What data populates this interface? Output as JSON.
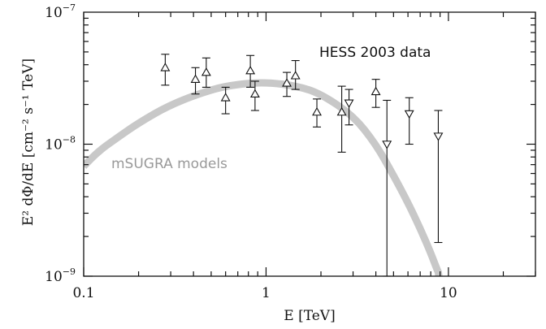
{
  "chart_data": {
    "type": "scatter",
    "xlabel": "E [TeV]",
    "ylabel": "E² dΦ/dE [cm⁻² s⁻¹ TeV]",
    "x_scale": "log",
    "y_scale": "log",
    "xlim": [
      0.1,
      30
    ],
    "ylim": [
      1e-09,
      1e-07
    ],
    "x_ticks": [
      {
        "value": 0.1,
        "label": "0.1"
      },
      {
        "value": 1,
        "label": "1"
      },
      {
        "value": 10,
        "label": "10"
      }
    ],
    "y_ticks": [
      {
        "value": 1e-09,
        "base": "10",
        "exp": "−9"
      },
      {
        "value": 1e-08,
        "base": "10",
        "exp": "−8"
      },
      {
        "value": 1e-07,
        "base": "10",
        "exp": "−7"
      }
    ],
    "annotations": [
      {
        "text": "HESS 2003 data",
        "style": "dark"
      },
      {
        "text": "mSUGRA models",
        "style": "grey"
      }
    ],
    "series": [
      {
        "kind": "points",
        "marker": "triangle-up",
        "points": [
          {
            "x": 0.28,
            "y": 3.8e-08,
            "lo": 2.8e-08,
            "hi": 4.8e-08
          },
          {
            "x": 0.41,
            "y": 3.1e-08,
            "lo": 2.4e-08,
            "hi": 3.8e-08
          },
          {
            "x": 0.47,
            "y": 3.5e-08,
            "lo": 2.7e-08,
            "hi": 4.5e-08
          },
          {
            "x": 0.6,
            "y": 2.25e-08,
            "lo": 1.7e-08,
            "hi": 2.7e-08
          },
          {
            "x": 0.82,
            "y": 3.6e-08,
            "lo": 2.7e-08,
            "hi": 4.7e-08
          },
          {
            "x": 0.87,
            "y": 2.4e-08,
            "lo": 1.8e-08,
            "hi": 3e-08
          },
          {
            "x": 1.3,
            "y": 2.9e-08,
            "lo": 2.3e-08,
            "hi": 3.5e-08
          },
          {
            "x": 1.45,
            "y": 3.3e-08,
            "lo": 2.6e-08,
            "hi": 4.3e-08
          },
          {
            "x": 1.9,
            "y": 1.75e-08,
            "lo": 1.35e-08,
            "hi": 2.2e-08
          },
          {
            "x": 2.6,
            "y": 1.75e-08,
            "lo": 8.7e-09,
            "hi": 2.75e-08
          },
          {
            "x": 4.0,
            "y": 2.5e-08,
            "lo": 1.9e-08,
            "hi": 3.1e-08
          }
        ]
      },
      {
        "kind": "points",
        "marker": "triangle-down",
        "points": [
          {
            "x": 2.85,
            "y": 2.05e-08,
            "lo": 1.4e-08,
            "hi": 2.6e-08
          },
          {
            "x": 4.6,
            "y": 1e-08,
            "lo": 1e-09,
            "hi": 2.15e-08
          },
          {
            "x": 6.1,
            "y": 1.7e-08,
            "lo": 1e-08,
            "hi": 2.25e-08
          },
          {
            "x": 8.8,
            "y": 1.15e-08,
            "lo": 1.8e-09,
            "hi": 1.8e-08
          }
        ]
      },
      {
        "kind": "band",
        "color": "#c8c8c8",
        "points": [
          [
            0.1,
            6.8e-09
          ],
          [
            0.12,
            8.8e-09
          ],
          [
            0.15,
            1.1e-08
          ],
          [
            0.2,
            1.45e-08
          ],
          [
            0.3,
            2e-08
          ],
          [
            0.5,
            2.6e-08
          ],
          [
            0.7,
            2.85e-08
          ],
          [
            1.0,
            2.95e-08
          ],
          [
            1.5,
            2.75e-08
          ],
          [
            2.0,
            2.4e-08
          ],
          [
            3.0,
            1.65e-08
          ],
          [
            4.0,
            1e-08
          ],
          [
            5.0,
            5.8e-09
          ],
          [
            6.0,
            3.6e-09
          ],
          [
            7.0,
            2.3e-09
          ],
          [
            8.0,
            1.5e-09
          ],
          [
            8.6,
            1.15e-09
          ],
          [
            9.0,
            1e-09
          ]
        ]
      }
    ]
  }
}
